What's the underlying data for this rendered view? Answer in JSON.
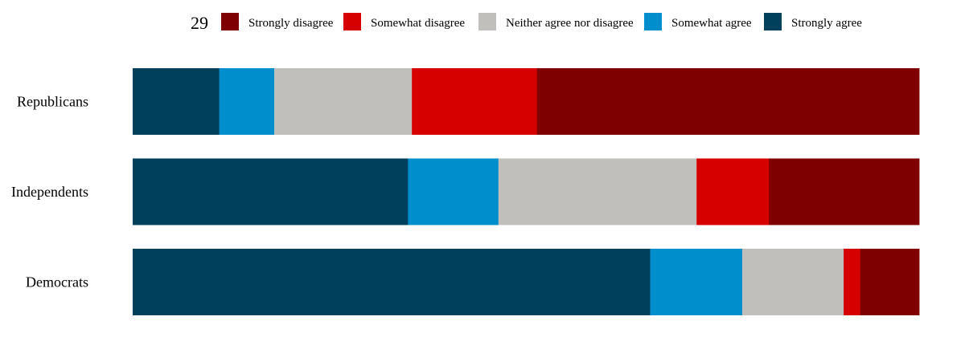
{
  "legend_number": "29",
  "colors": {
    "strongly_disagree": "#7f0000",
    "somewhat_disagree": "#d70000",
    "neither": "#c0bfbb",
    "somewhat_agree": "#008fcc",
    "strongly_agree": "#00405c"
  },
  "chart_data": {
    "type": "bar",
    "orientation": "horizontal",
    "stacked": true,
    "normalized_to": 100,
    "legend_position": "top",
    "categories": [
      "Republicans",
      "Independents",
      "Democrats"
    ],
    "series": [
      {
        "name": "Strongly agree",
        "color": "#00405c",
        "values": [
          11,
          35,
          65.8
        ]
      },
      {
        "name": "Somewhat agree",
        "color": "#008fcc",
        "values": [
          7,
          11.5,
          11.7
        ]
      },
      {
        "name": "Neither agree nor disagree",
        "color": "#c0bfbb",
        "values": [
          17.5,
          25.2,
          12.9
        ]
      },
      {
        "name": "Somewhat disagree",
        "color": "#d70000",
        "values": [
          15.9,
          9.2,
          2.1
        ]
      },
      {
        "name": "Strongly disagree",
        "color": "#7f0000",
        "values": [
          48.6,
          19.1,
          7.5
        ]
      }
    ],
    "legend_order": [
      "Strongly disagree",
      "Somewhat disagree",
      "Neither agree nor disagree",
      "Somewhat agree",
      "Strongly agree"
    ],
    "title": "",
    "xlabel": "",
    "ylabel": "",
    "grid": false
  }
}
